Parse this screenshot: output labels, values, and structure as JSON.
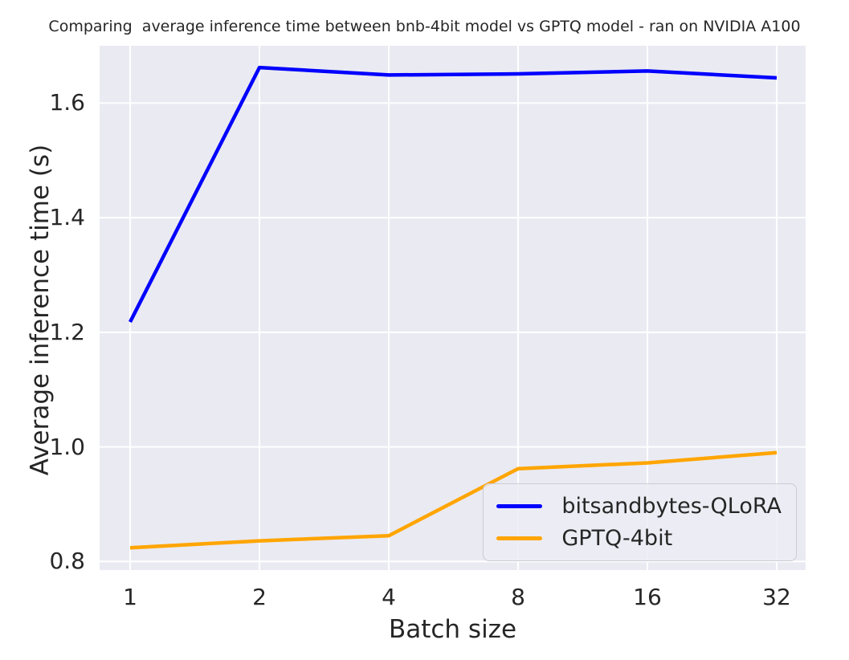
{
  "chart_data": {
    "type": "line",
    "title": "Comparing  average inference time between bnb-4bit model vs GPTQ model - ran on NVIDIA A100",
    "xlabel": "Batch size",
    "ylabel": "Average inference time (s)",
    "categories": [
      "1",
      "2",
      "4",
      "8",
      "16",
      "32"
    ],
    "series": [
      {
        "name": "bitsandbytes-QLoRA",
        "color": "#0000ff",
        "values": [
          1.218,
          1.662,
          1.649,
          1.651,
          1.656,
          1.644
        ]
      },
      {
        "name": "GPTQ-4bit",
        "color": "#ffa500",
        "values": [
          0.824,
          0.836,
          0.845,
          0.962,
          0.972,
          0.99
        ]
      }
    ],
    "yticks": [
      0.8,
      1.0,
      1.2,
      1.4,
      1.6
    ],
    "ytick_labels": [
      "0.8",
      "1.0",
      "1.2",
      "1.4",
      "1.6"
    ],
    "ylim": [
      0.785,
      1.7
    ],
    "grid": true,
    "legend_position": "lower right",
    "plot_bg": "#eaeaf2",
    "grid_color": "#ffffff",
    "text_color": "#262626"
  }
}
